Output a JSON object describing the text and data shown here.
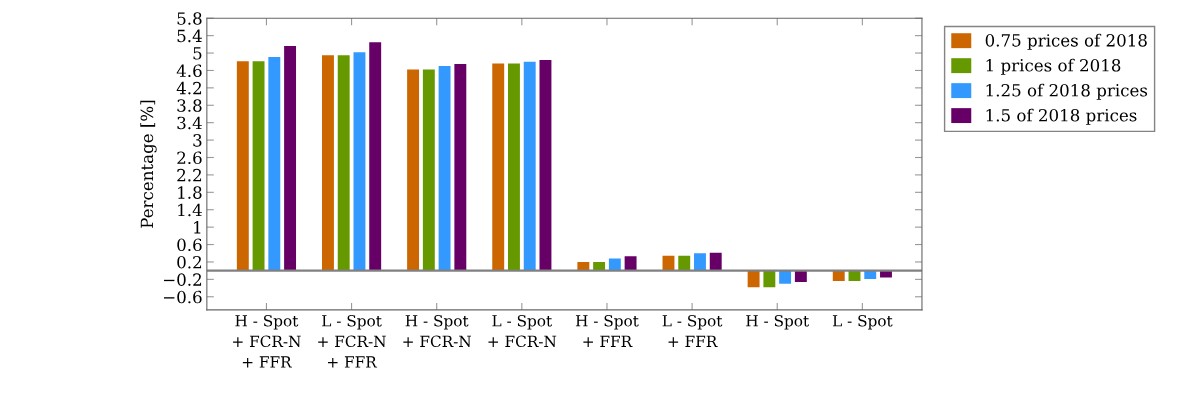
{
  "chart_data": {
    "type": "bar",
    "ylabel": "Percentage [%]",
    "categories": [
      "H - Spot\n+ FCR-N\n+ FFR",
      "L - Spot\n+ FCR-N\n+ FFR",
      "H - Spot\n+ FCR-N",
      "L - Spot\n+ FCR-N",
      "H - Spot\n+ FFR",
      "L - Spot\n+ FFR",
      "H - Spot",
      "L - Spot"
    ],
    "series": [
      {
        "name": "0.75 prices of 2018",
        "color": "#cc6600",
        "values": [
          4.81,
          4.95,
          4.62,
          4.76,
          0.2,
          0.34,
          -0.38,
          -0.24
        ]
      },
      {
        "name": "1 prices of 2018",
        "color": "#669900",
        "values": [
          4.81,
          4.95,
          4.62,
          4.76,
          0.2,
          0.34,
          -0.38,
          -0.24
        ]
      },
      {
        "name": "1.25 of 2018 prices",
        "color": "#3399ff",
        "values": [
          4.91,
          5.02,
          4.7,
          4.8,
          0.28,
          0.4,
          -0.3,
          -0.19
        ]
      },
      {
        "name": "1.5 of 2018 prices",
        "color": "#660066",
        "values": [
          5.16,
          5.25,
          4.75,
          4.84,
          0.33,
          0.41,
          -0.26,
          -0.16
        ]
      }
    ],
    "ylim": [
      -0.9,
      5.8
    ],
    "yticks": [
      {
        "value": -0.6,
        "label": "−0.6"
      },
      {
        "value": -0.2,
        "label": "−0.2"
      },
      0.2,
      0.6,
      1,
      1.4,
      1.8,
      2.2,
      2.6,
      3,
      3.4,
      3.8,
      4.2,
      4.6,
      5,
      5.4,
      5.8
    ],
    "ref_lines": [
      {
        "axis": "y",
        "value": 0,
        "color": "#808080"
      }
    ],
    "grid": false,
    "legend": "right"
  }
}
